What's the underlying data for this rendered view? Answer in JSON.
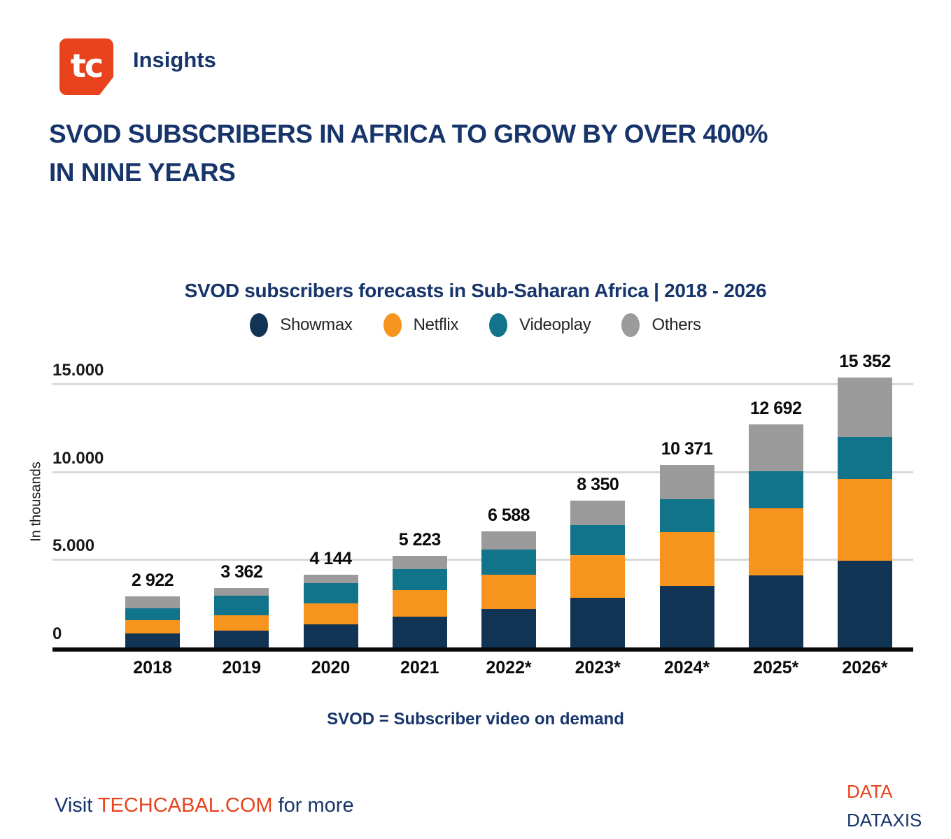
{
  "header": {
    "logo_text": "tc",
    "brand": "Insights"
  },
  "main_title_line1": "SVOD SUBSCRIBERS IN AFRICA TO GROW BY OVER 400%",
  "main_title_line2": "IN NINE YEARS",
  "chart_data": {
    "type": "bar",
    "stacked": true,
    "title": "SVOD subscribers forecasts in Sub-Saharan Africa | 2018 - 2026",
    "ylabel": "In thousands",
    "categories": [
      "2018",
      "2019",
      "2020",
      "2021",
      "2022*",
      "2023*",
      "2024*",
      "2025*",
      "2026*"
    ],
    "series": [
      {
        "name": "Showmax",
        "color": "#113354",
        "values": [
          780,
          950,
          1320,
          1731,
          2207,
          2829,
          3487,
          4108,
          4950
        ]
      },
      {
        "name": "Netflix",
        "color": "#F7941E",
        "values": [
          760,
          870,
          1182,
          1541,
          1941,
          2440,
          3079,
          3820,
          4620
        ]
      },
      {
        "name": "Videoplay",
        "color": "#11748A",
        "values": [
          680,
          1110,
          1154,
          1186,
          1410,
          1692,
          1874,
          2105,
          2416
        ]
      },
      {
        "name": "Others",
        "color": "#9B9B9B",
        "values": [
          702,
          432,
          488,
          765,
          1030,
          1389,
          1931,
          2659,
          3366
        ]
      }
    ],
    "totals": [
      2922,
      3362,
      4144,
      5223,
      6588,
      8350,
      10371,
      12692,
      15352
    ],
    "totals_display": [
      "2 922",
      "3 362",
      "4 144",
      "5 223",
      "6 588",
      "8 350",
      "10 371",
      "12 692",
      "15 352"
    ],
    "y_ticks": [
      {
        "value": 0,
        "label": "0"
      },
      {
        "value": 5000,
        "label": "5.000"
      },
      {
        "value": 10000,
        "label": "10.000"
      },
      {
        "value": 15000,
        "label": "15.000"
      }
    ],
    "ylim": [
      0,
      16000
    ],
    "grid": true,
    "legend_position": "top"
  },
  "footnote": "SVOD = Subscriber video on demand",
  "footer": {
    "visit_prefix": "Visit ",
    "visit_link": "TECHCABAL.COM",
    "visit_suffix": " for more",
    "source_line1": "DATA",
    "source_line2": "DATAXIS"
  },
  "colors": {
    "brand_navy": "#17356B",
    "brand_orange": "#E8431C",
    "gridline": "#D9D9D9",
    "axis": "#0A0A0A"
  }
}
